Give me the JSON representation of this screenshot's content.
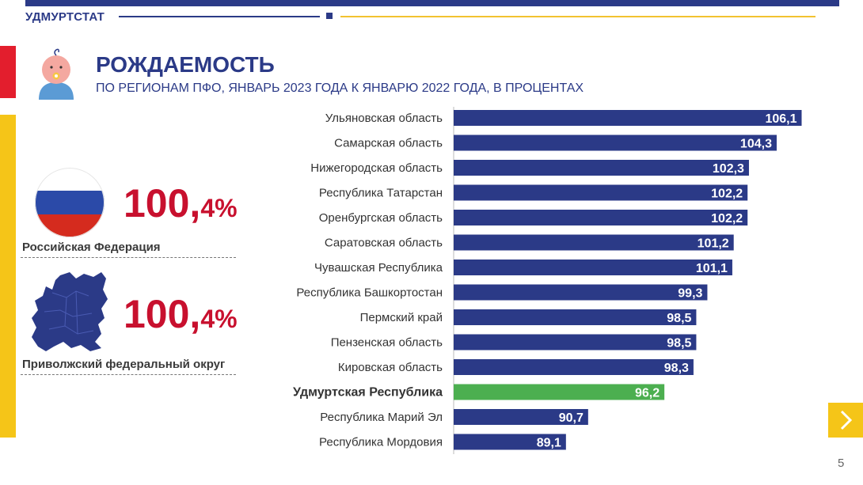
{
  "header": {
    "org": "УДМУРТСТАТ",
    "title": "РОЖДАЕМОСТЬ",
    "subtitle": "ПО РЕГИОНАМ ПФО, ЯНВАРЬ 2023 ГОДА К ЯНВАРЮ 2022 ГОДА, В ПРОЦЕНТАХ"
  },
  "summary": {
    "rf": {
      "int": "100,",
      "dec": "4%",
      "caption": "Российская Федерация"
    },
    "pfo": {
      "int": "100,",
      "dec": "4%",
      "caption": "Приволжский федеральный округ"
    }
  },
  "chart_data": {
    "type": "bar",
    "orientation": "horizontal",
    "title": "",
    "categories": [
      "Ульяновская область",
      "Самарская область",
      "Нижегородская область",
      "Республика Татарстан",
      "Оренбургская область",
      "Саратовская область",
      "Чувашская Республика",
      "Республика Башкортостан",
      "Пермский край",
      "Пензенская область",
      "Кировская область",
      "Удмуртская Республика",
      "Республика Марий Эл",
      "Республика Мордовия"
    ],
    "values": [
      106.1,
      104.3,
      102.3,
      102.2,
      102.2,
      101.2,
      101.1,
      99.3,
      98.5,
      98.5,
      98.3,
      96.2,
      90.7,
      89.1
    ],
    "labels": [
      "106,1",
      "104,3",
      "102,3",
      "102,2",
      "102,2",
      "101,2",
      "101,1",
      "99,3",
      "98,5",
      "98,5",
      "98,3",
      "96,2",
      "90,7",
      "89,1"
    ],
    "highlight": "Удмуртская Республика",
    "xlim": [
      81,
      106.7
    ],
    "colors": {
      "bar": "#2b3a87",
      "highlight": "#4caf50"
    }
  },
  "page_number": "5"
}
